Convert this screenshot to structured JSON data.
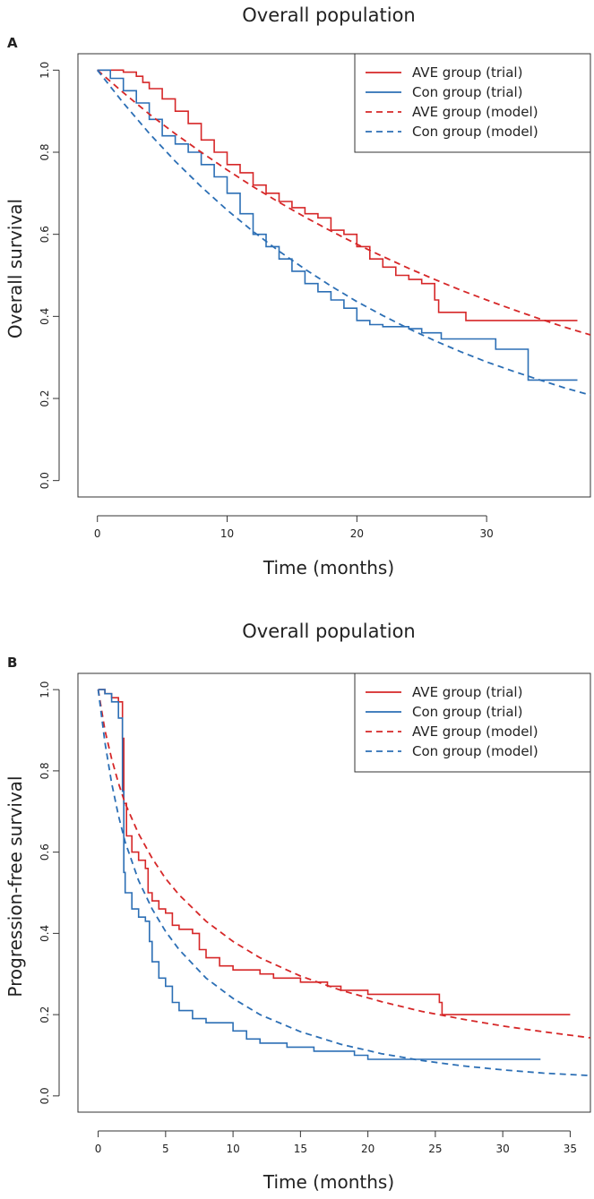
{
  "chart_data": [
    {
      "panel": "A",
      "type": "line",
      "title": "Overall population",
      "xlabel": "Time (months)",
      "ylabel": "Overall survival",
      "xlim": [
        -1.5,
        38
      ],
      "ylim": [
        -0.04,
        1.04
      ],
      "xticks": [
        0,
        10,
        20,
        30
      ],
      "yticks": [
        0.0,
        0.2,
        0.4,
        0.6,
        0.8,
        1.0
      ],
      "legend_position": "top-right",
      "series": [
        {
          "name": "AVE group (trial)",
          "style": "step",
          "color": "#d62728",
          "points": [
            [
              0,
              1.0
            ],
            [
              1,
              1.0
            ],
            [
              2,
              0.995
            ],
            [
              3,
              0.985
            ],
            [
              3.5,
              0.97
            ],
            [
              4,
              0.955
            ],
            [
              5,
              0.93
            ],
            [
              6,
              0.9
            ],
            [
              7,
              0.87
            ],
            [
              8,
              0.83
            ],
            [
              9,
              0.8
            ],
            [
              10,
              0.77
            ],
            [
              11,
              0.75
            ],
            [
              12,
              0.72
            ],
            [
              13,
              0.7
            ],
            [
              14,
              0.68
            ],
            [
              15,
              0.665
            ],
            [
              16,
              0.65
            ],
            [
              17,
              0.64
            ],
            [
              18,
              0.61
            ],
            [
              19,
              0.6
            ],
            [
              20,
              0.57
            ],
            [
              21,
              0.54
            ],
            [
              22,
              0.52
            ],
            [
              23,
              0.5
            ],
            [
              24,
              0.49
            ],
            [
              25,
              0.48
            ],
            [
              26,
              0.44
            ],
            [
              26.3,
              0.41
            ],
            [
              28.4,
              0.39
            ],
            [
              37,
              0.39
            ]
          ]
        },
        {
          "name": "Con group (trial)",
          "style": "step",
          "color": "#2c6fb5",
          "points": [
            [
              0,
              1.0
            ],
            [
              1,
              0.98
            ],
            [
              2,
              0.95
            ],
            [
              3,
              0.92
            ],
            [
              4,
              0.88
            ],
            [
              5,
              0.84
            ],
            [
              6,
              0.82
            ],
            [
              7,
              0.8
            ],
            [
              8,
              0.77
            ],
            [
              9,
              0.74
            ],
            [
              10,
              0.7
            ],
            [
              11,
              0.65
            ],
            [
              12,
              0.6
            ],
            [
              13,
              0.57
            ],
            [
              14,
              0.54
            ],
            [
              15,
              0.51
            ],
            [
              16,
              0.48
            ],
            [
              17,
              0.46
            ],
            [
              18,
              0.44
            ],
            [
              19,
              0.42
            ],
            [
              20,
              0.39
            ],
            [
              21,
              0.38
            ],
            [
              22,
              0.375
            ],
            [
              24,
              0.37
            ],
            [
              25,
              0.36
            ],
            [
              26.5,
              0.345
            ],
            [
              30.7,
              0.32
            ],
            [
              33.2,
              0.245
            ],
            [
              37,
              0.245
            ]
          ]
        },
        {
          "name": "AVE group (model)",
          "style": "dashed",
          "color": "#d62728",
          "points": [
            [
              0,
              1.0
            ],
            [
              2,
              0.945
            ],
            [
              4,
              0.893
            ],
            [
              6,
              0.845
            ],
            [
              8,
              0.8
            ],
            [
              10,
              0.757
            ],
            [
              12,
              0.716
            ],
            [
              14,
              0.678
            ],
            [
              16,
              0.642
            ],
            [
              18,
              0.608
            ],
            [
              20,
              0.576
            ],
            [
              22,
              0.546
            ],
            [
              24,
              0.517
            ],
            [
              26,
              0.49
            ],
            [
              28,
              0.464
            ],
            [
              30,
              0.44
            ],
            [
              32,
              0.417
            ],
            [
              34,
              0.395
            ],
            [
              36,
              0.374
            ],
            [
              38,
              0.355
            ]
          ]
        },
        {
          "name": "Con group (model)",
          "style": "dashed",
          "color": "#2c6fb5",
          "points": [
            [
              0,
              1.0
            ],
            [
              2,
              0.92
            ],
            [
              4,
              0.846
            ],
            [
              6,
              0.778
            ],
            [
              8,
              0.716
            ],
            [
              10,
              0.659
            ],
            [
              12,
              0.607
            ],
            [
              14,
              0.559
            ],
            [
              16,
              0.515
            ],
            [
              18,
              0.474
            ],
            [
              20,
              0.436
            ],
            [
              22,
              0.402
            ],
            [
              24,
              0.37
            ],
            [
              26,
              0.341
            ],
            [
              28,
              0.314
            ],
            [
              30,
              0.289
            ],
            [
              32,
              0.267
            ],
            [
              34,
              0.246
            ],
            [
              36,
              0.226
            ],
            [
              38,
              0.208
            ]
          ]
        }
      ],
      "legend": [
        "AVE group (trial)",
        "Con group (trial)",
        "AVE group (model)",
        "Con group (model)"
      ]
    },
    {
      "panel": "B",
      "type": "line",
      "title": "Overall population",
      "xlabel": "Time (months)",
      "ylabel": "Progression-free survival",
      "xlim": [
        -1.5,
        36.5
      ],
      "ylim": [
        -0.04,
        1.04
      ],
      "xticks": [
        0,
        5,
        10,
        15,
        20,
        25,
        30,
        35
      ],
      "yticks": [
        0.0,
        0.2,
        0.4,
        0.6,
        0.8,
        1.0
      ],
      "legend_position": "top-right",
      "series": [
        {
          "name": "AVE group (trial)",
          "style": "step",
          "color": "#d62728",
          "points": [
            [
              0,
              1.0
            ],
            [
              0.5,
              0.99
            ],
            [
              1,
              0.98
            ],
            [
              1.5,
              0.97
            ],
            [
              1.8,
              0.88
            ],
            [
              1.9,
              0.72
            ],
            [
              2.1,
              0.64
            ],
            [
              2.5,
              0.6
            ],
            [
              3,
              0.58
            ],
            [
              3.5,
              0.56
            ],
            [
              3.7,
              0.5
            ],
            [
              4,
              0.48
            ],
            [
              4.5,
              0.46
            ],
            [
              5,
              0.45
            ],
            [
              5.5,
              0.42
            ],
            [
              6,
              0.41
            ],
            [
              7,
              0.4
            ],
            [
              7.5,
              0.36
            ],
            [
              8,
              0.34
            ],
            [
              9,
              0.32
            ],
            [
              10,
              0.31
            ],
            [
              12,
              0.3
            ],
            [
              13,
              0.29
            ],
            [
              15,
              0.28
            ],
            [
              17,
              0.27
            ],
            [
              18,
              0.26
            ],
            [
              20,
              0.25
            ],
            [
              25.3,
              0.23
            ],
            [
              25.5,
              0.2
            ],
            [
              35,
              0.2
            ]
          ]
        },
        {
          "name": "Con group (trial)",
          "style": "step",
          "color": "#2c6fb5",
          "points": [
            [
              0,
              1.0
            ],
            [
              0.5,
              0.99
            ],
            [
              1,
              0.97
            ],
            [
              1.5,
              0.93
            ],
            [
              1.8,
              0.75
            ],
            [
              1.9,
              0.55
            ],
            [
              2,
              0.5
            ],
            [
              2.5,
              0.46
            ],
            [
              3,
              0.44
            ],
            [
              3.5,
              0.43
            ],
            [
              3.8,
              0.38
            ],
            [
              4,
              0.33
            ],
            [
              4.5,
              0.29
            ],
            [
              5,
              0.27
            ],
            [
              5.5,
              0.23
            ],
            [
              6,
              0.21
            ],
            [
              7,
              0.19
            ],
            [
              8,
              0.18
            ],
            [
              10,
              0.16
            ],
            [
              11,
              0.14
            ],
            [
              12,
              0.13
            ],
            [
              14,
              0.12
            ],
            [
              16,
              0.11
            ],
            [
              19,
              0.1
            ],
            [
              20,
              0.09
            ],
            [
              32.8,
              0.09
            ]
          ]
        },
        {
          "name": "AVE group (model)",
          "style": "dashed",
          "color": "#d62728",
          "points": [
            [
              0,
              1.0
            ],
            [
              0.5,
              0.9
            ],
            [
              1,
              0.83
            ],
            [
              1.5,
              0.77
            ],
            [
              2,
              0.72
            ],
            [
              3,
              0.645
            ],
            [
              4,
              0.585
            ],
            [
              5,
              0.535
            ],
            [
              6,
              0.495
            ],
            [
              8,
              0.43
            ],
            [
              10,
              0.38
            ],
            [
              12,
              0.34
            ],
            [
              15,
              0.295
            ],
            [
              18,
              0.26
            ],
            [
              21,
              0.232
            ],
            [
              24,
              0.208
            ],
            [
              27,
              0.189
            ],
            [
              30,
              0.172
            ],
            [
              33,
              0.158
            ],
            [
              36.5,
              0.143
            ]
          ]
        },
        {
          "name": "Con group (model)",
          "style": "dashed",
          "color": "#2c6fb5",
          "points": [
            [
              0,
              1.0
            ],
            [
              0.5,
              0.87
            ],
            [
              1,
              0.77
            ],
            [
              1.5,
              0.69
            ],
            [
              2,
              0.625
            ],
            [
              3,
              0.53
            ],
            [
              4,
              0.46
            ],
            [
              5,
              0.405
            ],
            [
              6,
              0.36
            ],
            [
              8,
              0.29
            ],
            [
              10,
              0.24
            ],
            [
              12,
              0.2
            ],
            [
              15,
              0.158
            ],
            [
              18,
              0.127
            ],
            [
              21,
              0.104
            ],
            [
              24,
              0.087
            ],
            [
              27,
              0.074
            ],
            [
              30,
              0.064
            ],
            [
              33,
              0.056
            ],
            [
              36.5,
              0.05
            ]
          ]
        }
      ],
      "legend": [
        "AVE group (trial)",
        "Con group (trial)",
        "AVE group (model)",
        "Con group (model)"
      ]
    }
  ]
}
